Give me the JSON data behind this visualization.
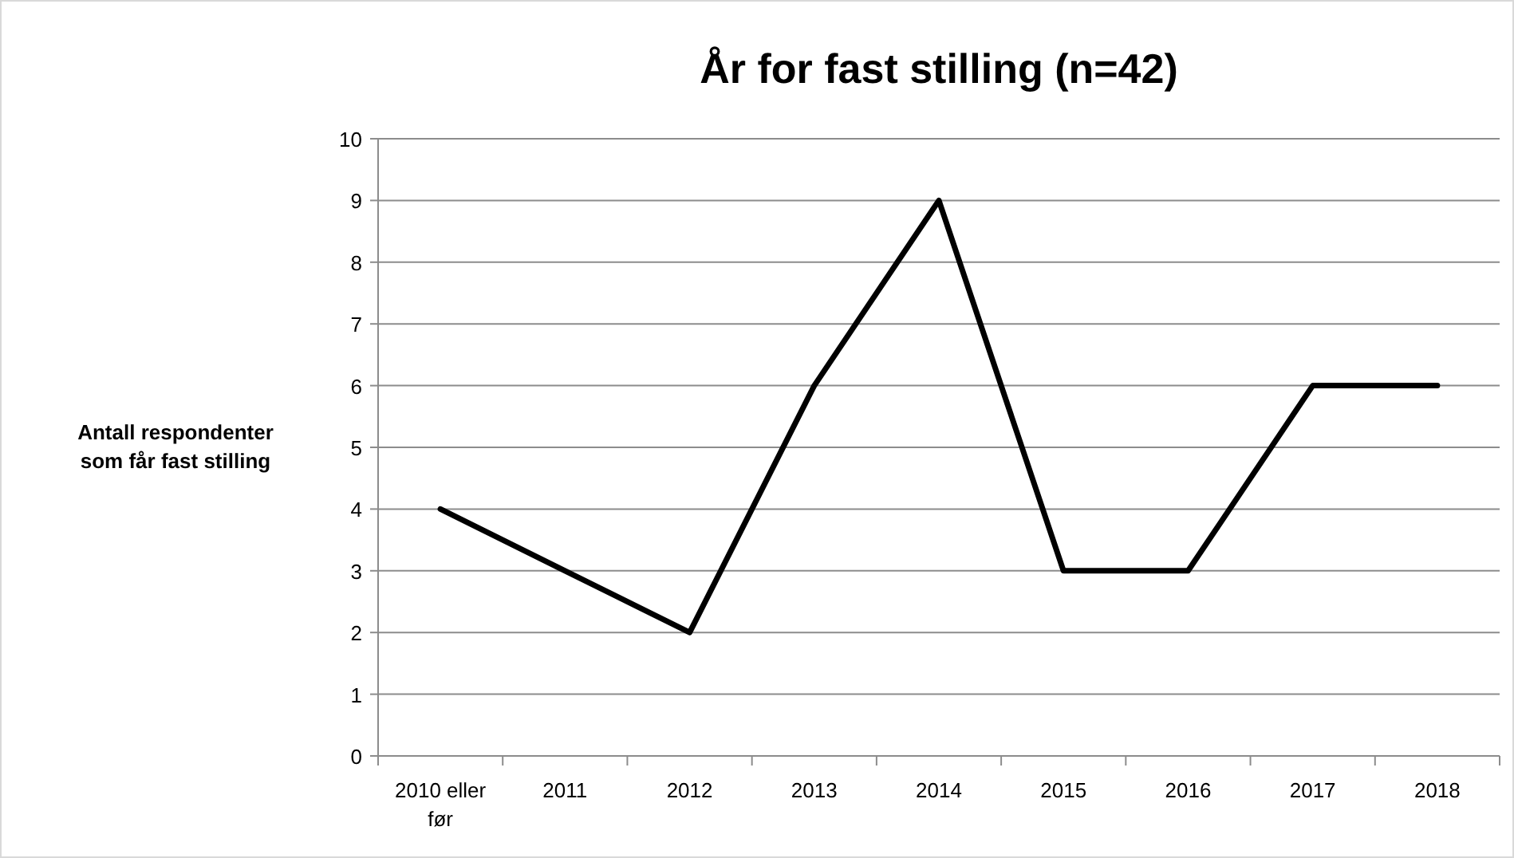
{
  "chart_data": {
    "type": "line",
    "title": "År for fast stilling (n=42)",
    "ylabel": "Antall respondenter som får fast stilling",
    "categories": [
      "2010 eller før",
      "2011",
      "2012",
      "2013",
      "2014",
      "2015",
      "2016",
      "2017",
      "2018"
    ],
    "series": [
      {
        "color": "#000000",
        "values": [
          4,
          3,
          2,
          6,
          9,
          3,
          3,
          6,
          6
        ]
      }
    ],
    "ylim": [
      0,
      10
    ],
    "yticks": [
      0,
      1,
      2,
      3,
      4,
      5,
      6,
      7,
      8,
      9,
      10
    ],
    "grid": "y",
    "marker": "none",
    "line_style": "solid"
  }
}
